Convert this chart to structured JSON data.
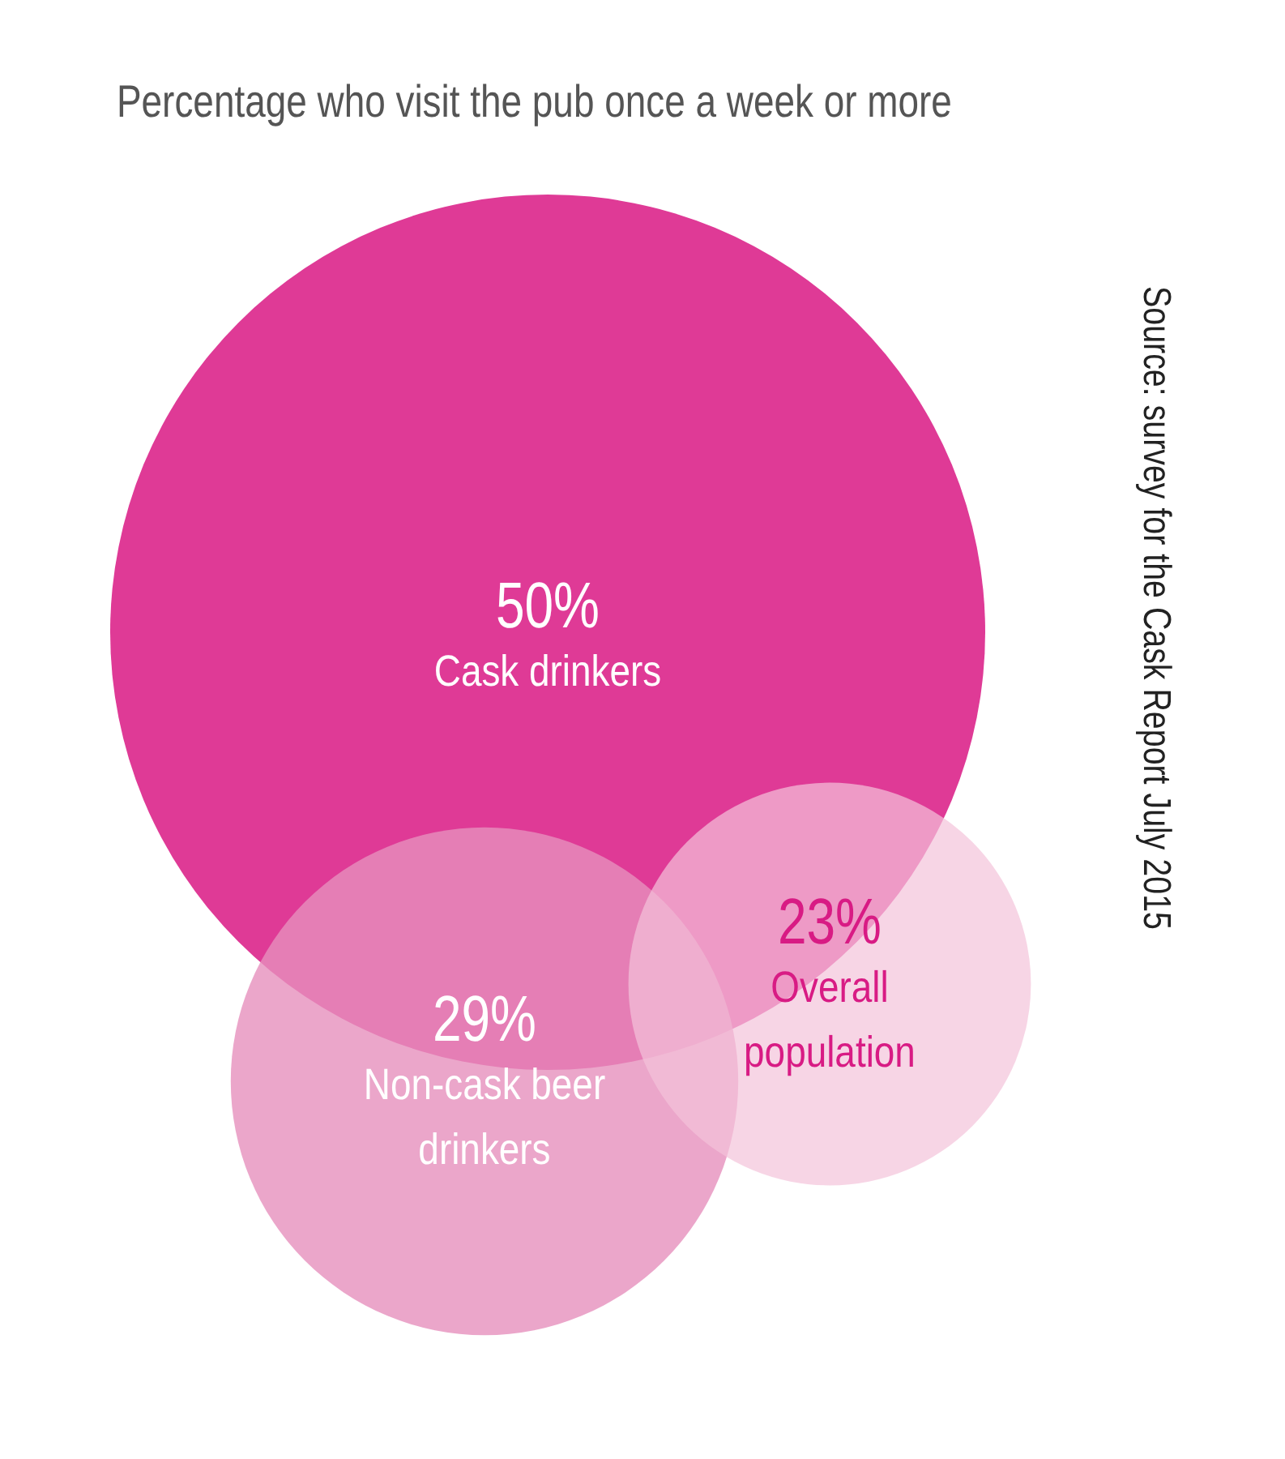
{
  "chart_data": {
    "type": "other",
    "title": "Percentage who visit the pub once a week or more",
    "categories": [
      "Cask drinkers",
      "Non-cask beer drinkers",
      "Overall population"
    ],
    "values": [
      50,
      29,
      23
    ],
    "value_labels": [
      "50%",
      "29%",
      "23%"
    ],
    "colors": [
      "#df3a96",
      "#e690bd",
      "#f4c3da"
    ],
    "annotations": [
      "Source: survey for the Cask Report July 2015"
    ]
  }
}
